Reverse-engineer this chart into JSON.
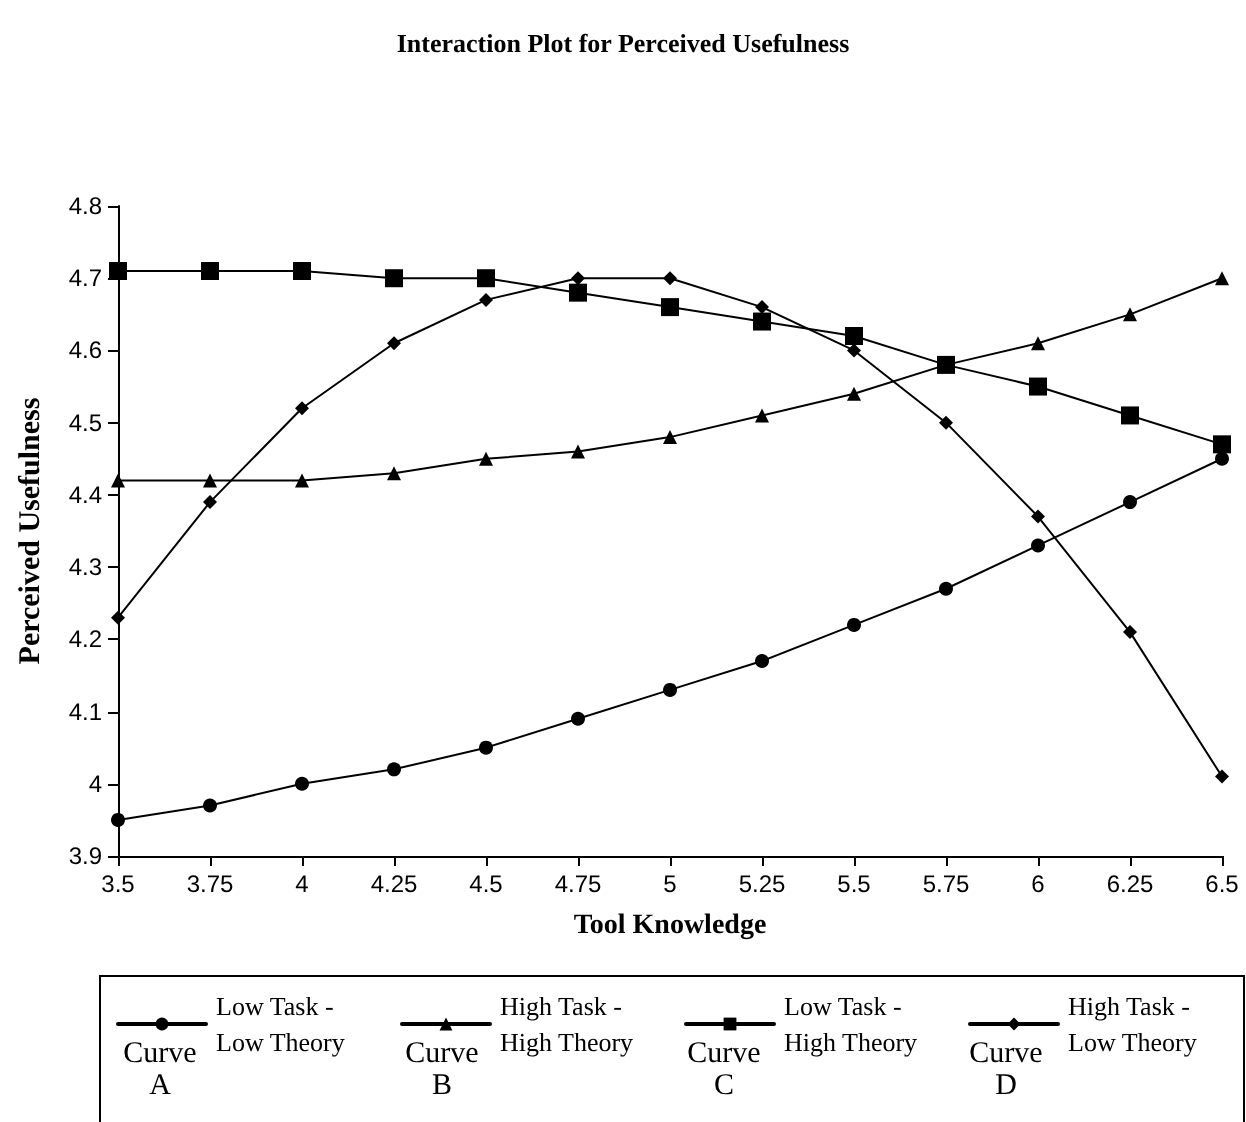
{
  "chart_data": {
    "type": "line",
    "title": "Interaction Plot for Perceived Usefulness",
    "xlabel": "Tool Knowledge",
    "ylabel": "Perceived Usefulness",
    "x": [
      3.5,
      3.75,
      4,
      4.25,
      4.5,
      4.75,
      5,
      5.25,
      5.5,
      5.75,
      6,
      6.25,
      6.5
    ],
    "series": [
      {
        "name": "Low Task - Low Theory",
        "color": "#000000",
        "marker": "circle",
        "values": [
          3.95,
          3.97,
          4.0,
          4.02,
          4.05,
          4.09,
          4.13,
          4.17,
          4.22,
          4.27,
          4.33,
          4.39,
          4.45
        ]
      },
      {
        "name": "High Task - High Theory",
        "color": "#000000",
        "marker": "triangle",
        "values": [
          4.42,
          4.42,
          4.42,
          4.43,
          4.45,
          4.46,
          4.48,
          4.51,
          4.54,
          4.58,
          4.61,
          4.65,
          4.7
        ]
      },
      {
        "name": "Low Task - High Theory",
        "color": "#000000",
        "marker": "square",
        "values": [
          4.71,
          4.71,
          4.71,
          4.7,
          4.7,
          4.68,
          4.66,
          4.64,
          4.62,
          4.58,
          4.55,
          4.51,
          4.47
        ]
      },
      {
        "name": "High Task - Low Theory",
        "color": "#000000",
        "marker": "diamond",
        "values": [
          4.23,
          4.39,
          4.52,
          4.61,
          4.67,
          4.7,
          4.7,
          4.66,
          4.6,
          4.5,
          4.37,
          4.21,
          4.01
        ]
      }
    ],
    "annotations": [
      "Curve A",
      "Curve B",
      "Curve C",
      "Curve D"
    ],
    "xlim": [
      3.5,
      6.5
    ],
    "xticks": [
      3.5,
      3.75,
      4,
      4.25,
      4.5,
      4.75,
      5,
      5.25,
      5.5,
      5.75,
      6,
      6.25,
      6.5
    ],
    "ylim": [
      3.9,
      4.8
    ],
    "yticks": [
      3.9,
      4,
      4.1,
      4.2,
      4.3,
      4.4,
      4.5,
      4.6,
      4.7,
      4.8
    ],
    "grid": false,
    "legend": "bottom",
    "line_style": "solid"
  }
}
